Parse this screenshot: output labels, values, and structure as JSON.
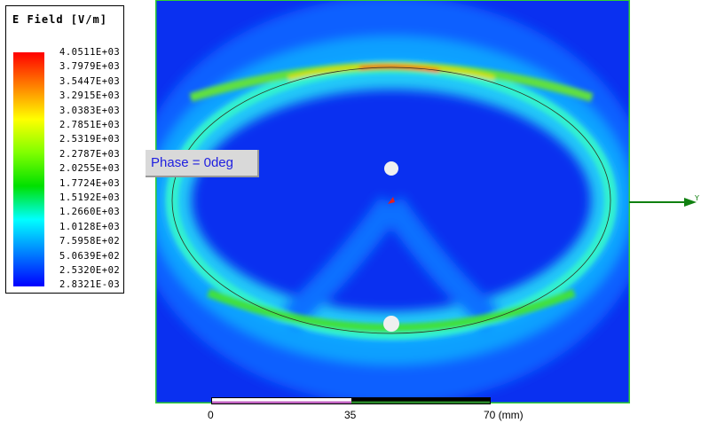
{
  "legend": {
    "title": "E Field [V/m]",
    "ticks": [
      "4.0511E+03",
      "3.7979E+03",
      "3.5447E+03",
      "3.2915E+03",
      "3.0383E+03",
      "2.7851E+03",
      "2.5319E+03",
      "2.2787E+03",
      "2.0255E+03",
      "1.7724E+03",
      "1.5192E+03",
      "1.2660E+03",
      "1.0128E+03",
      "7.5958E+02",
      "5.0639E+02",
      "2.5320E+02",
      "2.8321E-03"
    ],
    "colors": [
      "#ff0000",
      "#ff8000",
      "#ffff00",
      "#80ff00",
      "#00e000",
      "#00ffff",
      "#0080ff",
      "#0000ff"
    ]
  },
  "phase_label": "Phase = 0deg",
  "scale": {
    "labels": [
      "0",
      "35",
      "70 (mm)"
    ]
  },
  "axis": {
    "y_label": "Y"
  }
}
